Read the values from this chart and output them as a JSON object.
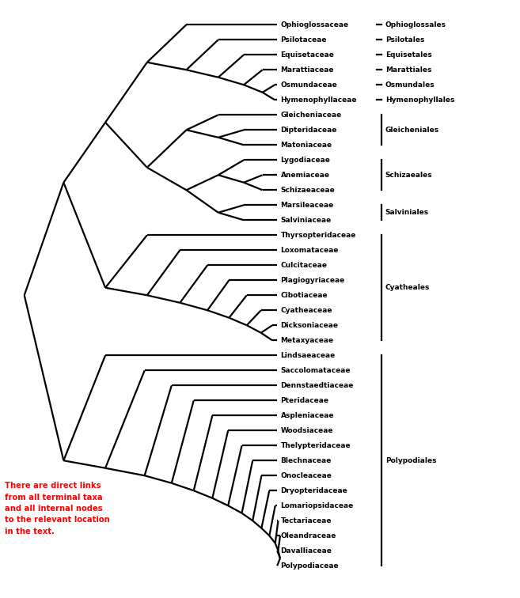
{
  "taxa": [
    "Ophioglossaceae",
    "Psilotaceae",
    "Equisetaceae",
    "Marattiaceae",
    "Osmundaceae",
    "Hymenophyllaceae",
    "Gleicheniaceae",
    "Dipteridaceae",
    "Matoniaceae",
    "Lygodiaceae",
    "Anemiaceae",
    "Schizaeaceae",
    "Marsileaceae",
    "Salviniaceae",
    "Thyrsopteridaceae",
    "Loxomataceae",
    "Culcitaceae",
    "Plagiogyriaceae",
    "Cibotiaceae",
    "Cyatheaceae",
    "Dicksoniaceae",
    "Metaxyaceae",
    "Lindsaeaceae",
    "Saccolomataceae",
    "Dennstaedtiaceae",
    "Pteridaceae",
    "Aspleniaceae",
    "Woodsiaceae",
    "Thelypteridaceae",
    "Blechnaceae",
    "Onocleaceae",
    "Dryopteridaceae",
    "Lomariopsidaceae",
    "Tectariaceae",
    "Oleandraceae",
    "Davalliaceae",
    "Polypodiaceae"
  ],
  "orders": [
    {
      "name": "Ophioglossales",
      "start": 0,
      "end": 0
    },
    {
      "name": "Psilotales",
      "start": 1,
      "end": 1
    },
    {
      "name": "Equisetales",
      "start": 2,
      "end": 2
    },
    {
      "name": "Marattiales",
      "start": 3,
      "end": 3
    },
    {
      "name": "Osmundales",
      "start": 4,
      "end": 4
    },
    {
      "name": "Hymenophyllales",
      "start": 5,
      "end": 5
    },
    {
      "name": "Gleicheniales",
      "start": 6,
      "end": 8
    },
    {
      "name": "Schizaeales",
      "start": 9,
      "end": 11
    },
    {
      "name": "Salviniales",
      "start": 12,
      "end": 13
    },
    {
      "name": "Cyatheales",
      "start": 14,
      "end": 21
    },
    {
      "name": "Polypodiales",
      "start": 22,
      "end": 36
    }
  ],
  "annotation": "There are direct links\nfrom all terminal taxa\nand all internal nodes\nto the relevant location\nin the text.",
  "annotation_color": "#ff0000",
  "line_color": "#000000",
  "line_width": 1.6,
  "fig_width": 6.57,
  "fig_height": 7.56,
  "dpi": 100
}
